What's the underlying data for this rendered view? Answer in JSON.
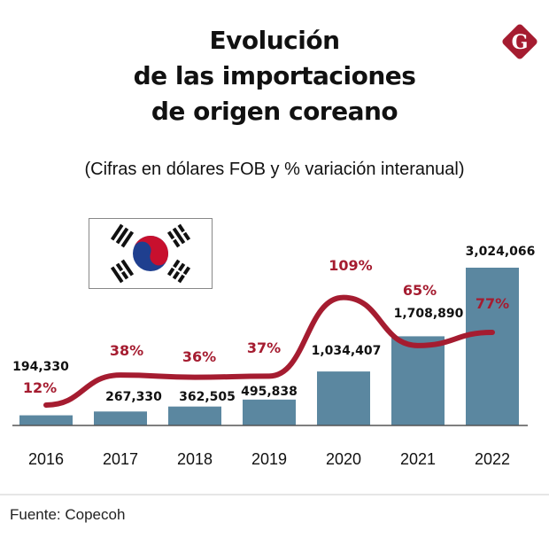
{
  "header": {
    "title_lines": [
      "Evolución",
      "de las importaciones",
      "de origen coreano"
    ],
    "subtitle": "(Cifras en dólares FOB y % variación interanual)",
    "logo_letter": "G"
  },
  "colors": {
    "bar": "#5b87a0",
    "line": "#a51c30",
    "percent_text": "#a51c30",
    "logo": "#a51c30",
    "axis": "#555555"
  },
  "footer": {
    "source": "Fuente: Copecoh"
  },
  "chart_data": {
    "type": "bar",
    "title": "Evolución de las importaciones de origen coreano",
    "subtitle": "(Cifras en dólares FOB y % variación interanual)",
    "xlabel": "",
    "ylabel": "",
    "categories": [
      "2016",
      "2017",
      "2018",
      "2019",
      "2020",
      "2021",
      "2022"
    ],
    "series": [
      {
        "name": "Importaciones (US$ FOB)",
        "type": "bar",
        "values": [
          194330,
          267330,
          362505,
          495838,
          1034407,
          1708890,
          3024066
        ],
        "labels": [
          "194,330",
          "267,330",
          "362,505",
          "495,838",
          "1,034,407",
          "1,708,890",
          "3,024,066"
        ]
      },
      {
        "name": "% variación interanual",
        "type": "line",
        "values": [
          12,
          38,
          36,
          37,
          109,
          65,
          77
        ],
        "labels": [
          "12%",
          "38%",
          "36%",
          "37%",
          "109%",
          "65%",
          "77%"
        ]
      }
    ],
    "ylim": [
      0,
      3024066
    ],
    "grid": false,
    "legend": "none"
  }
}
